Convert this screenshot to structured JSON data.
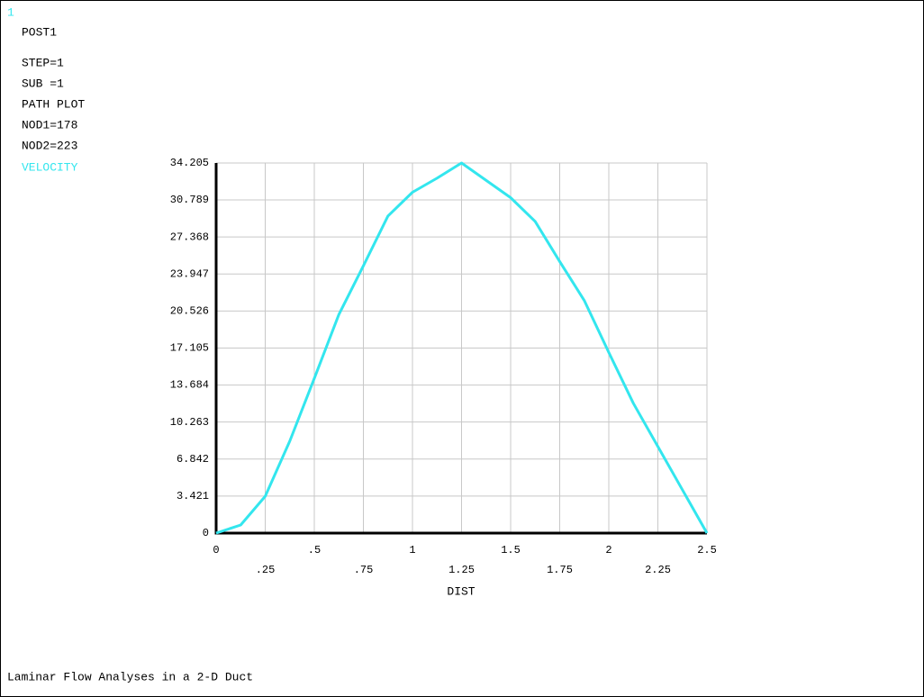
{
  "chart_data": {
    "type": "line",
    "window_label": "1",
    "annotations": [
      "POST1",
      "STEP=1",
      "SUB =1",
      "PATH PLOT",
      "NOD1=178",
      "NOD2=223"
    ],
    "xlabel": "DIST",
    "footer": "Laminar Flow Analyses in a 2-D Duct",
    "x": [
      0,
      0.125,
      0.25,
      0.375,
      0.5,
      0.625,
      0.75,
      0.875,
      1,
      1.125,
      1.25,
      1.375,
      1.5,
      1.625,
      1.75,
      1.875,
      2,
      2.125,
      2.25,
      2.375,
      2.5
    ],
    "series": [
      {
        "name": "VELOCITY",
        "color": "#33e6ee",
        "values": [
          0,
          0.75,
          3.4,
          8.5,
          14.3,
          20.2,
          24.7,
          29.3,
          31.5,
          32.8,
          34.205,
          32.6,
          31.0,
          28.8,
          25.1,
          21.5,
          16.7,
          12.0,
          8.0,
          4.0,
          0
        ]
      }
    ],
    "xlim": [
      0,
      2.5
    ],
    "ylim": [
      0,
      34.205
    ],
    "xticks": [
      0,
      {
        "value": 0.25,
        "label": ".25"
      },
      {
        "value": 0.5,
        "label": ".5"
      },
      {
        "value": 0.75,
        "label": ".75"
      },
      1,
      1.25,
      1.5,
      1.75,
      2,
      2.25,
      2.5
    ],
    "yticks": [
      0,
      3.421,
      6.842,
      10.263,
      13.684,
      17.105,
      20.526,
      23.947,
      27.368,
      30.789,
      34.205
    ],
    "grid": true
  }
}
